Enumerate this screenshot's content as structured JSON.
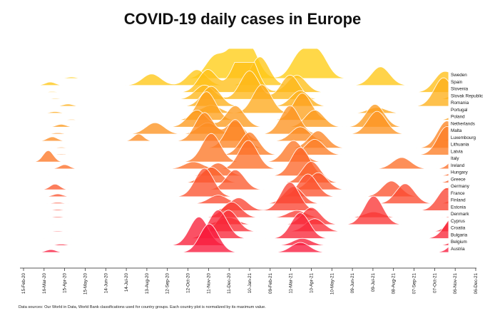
{
  "chart_data": {
    "type": "area",
    "title": "COVID-19 daily cases in Europe",
    "xlabel": "",
    "ylabel": "",
    "x_ticks": [
      "15-Feb-20",
      "16-Mar-20",
      "15-Apr-20",
      "15-May-20",
      "14-Jun-20",
      "14-Jul-20",
      "13-Aug-20",
      "12-Sep-20",
      "12-Oct-20",
      "11-Nov-20",
      "11-Dec-20",
      "10-Jan-21",
      "09-Feb-21",
      "11-Mar-21",
      "10-Apr-21",
      "10-May-21",
      "09-Jun-21",
      "09-Jul-21",
      "08-Aug-21",
      "07-Sep-21",
      "07-Oct-21",
      "06-Nov-21",
      "06-Dec-21"
    ],
    "x_range": [
      "2020-02-15",
      "2021-12-06"
    ],
    "normalization": "each series scaled to its own maximum (0-1)",
    "series": [
      {
        "name": "Sweden",
        "peaks": [
          [
            "2020-04-25",
            0.05
          ],
          [
            "2020-11-20",
            0.75
          ],
          [
            "2020-12-20",
            0.95
          ],
          [
            "2021-01-10",
            1.0
          ],
          [
            "2021-03-25",
            0.85
          ],
          [
            "2021-04-20",
            0.9
          ]
        ]
      },
      {
        "name": "Spain",
        "peaks": [
          [
            "2020-03-25",
            0.12
          ],
          [
            "2020-08-20",
            0.4
          ],
          [
            "2020-10-25",
            0.55
          ],
          [
            "2021-01-25",
            1.0
          ],
          [
            "2021-07-20",
            0.65
          ]
        ]
      },
      {
        "name": "Slovenia",
        "peaks": [
          [
            "2020-03-28",
            0.03
          ],
          [
            "2020-11-10",
            0.8
          ],
          [
            "2020-12-25",
            0.85
          ],
          [
            "2021-01-10",
            1.0
          ],
          [
            "2021-03-20",
            0.6
          ],
          [
            "2021-10-20",
            0.7
          ],
          [
            "2021-11-25",
            1.0
          ]
        ]
      },
      {
        "name": "Slovak Republic",
        "peaks": [
          [
            "2020-04-01",
            0.03
          ],
          [
            "2020-11-05",
            0.5
          ],
          [
            "2021-01-10",
            1.0
          ],
          [
            "2021-03-10",
            0.85
          ],
          [
            "2021-11-25",
            1.0
          ]
        ]
      },
      {
        "name": "Romania",
        "peaks": [
          [
            "2020-04-20",
            0.08
          ],
          [
            "2020-11-15",
            0.7
          ],
          [
            "2021-03-25",
            0.55
          ],
          [
            "2021-10-20",
            1.0
          ]
        ]
      },
      {
        "name": "Portugal",
        "peaks": [
          [
            "2020-04-01",
            0.06
          ],
          [
            "2020-11-15",
            0.28
          ],
          [
            "2021-01-28",
            1.0
          ],
          [
            "2021-07-15",
            0.2
          ],
          [
            "2021-11-30",
            0.2
          ]
        ]
      },
      {
        "name": "Poland",
        "peaks": [
          [
            "2020-04-25",
            0.03
          ],
          [
            "2020-11-08",
            1.0
          ],
          [
            "2021-03-28",
            0.95
          ],
          [
            "2021-11-25",
            0.9
          ]
        ]
      },
      {
        "name": "Netherlands",
        "peaks": [
          [
            "2020-04-10",
            0.1
          ],
          [
            "2020-10-25",
            0.6
          ],
          [
            "2020-12-20",
            0.75
          ],
          [
            "2021-04-15",
            0.6
          ],
          [
            "2021-07-12",
            0.8
          ],
          [
            "2021-11-25",
            1.0
          ]
        ]
      },
      {
        "name": "Malta",
        "peaks": [
          [
            "2020-04-05",
            0.05
          ],
          [
            "2020-08-25",
            0.4
          ],
          [
            "2020-11-10",
            0.4
          ],
          [
            "2021-03-10",
            1.0
          ],
          [
            "2021-07-15",
            0.8
          ]
        ]
      },
      {
        "name": "Luxembourg",
        "peaks": [
          [
            "2020-03-28",
            0.15
          ],
          [
            "2020-08-01",
            0.25
          ],
          [
            "2020-11-05",
            1.0
          ],
          [
            "2020-12-20",
            0.7
          ],
          [
            "2021-03-25",
            0.5
          ],
          [
            "2021-11-25",
            0.9
          ]
        ]
      },
      {
        "name": "Lithuania",
        "peaks": [
          [
            "2020-04-10",
            0.03
          ],
          [
            "2020-12-20",
            1.0
          ],
          [
            "2021-04-20",
            0.6
          ],
          [
            "2021-10-25",
            0.95
          ]
        ]
      },
      {
        "name": "Latvia",
        "peaks": [
          [
            "2020-04-10",
            0.03
          ],
          [
            "2021-01-10",
            0.8
          ],
          [
            "2021-04-15",
            0.55
          ],
          [
            "2021-10-25",
            1.0
          ]
        ]
      },
      {
        "name": "Italy",
        "peaks": [
          [
            "2020-03-22",
            0.4
          ],
          [
            "2020-11-15",
            1.0
          ],
          [
            "2021-03-15",
            0.75
          ],
          [
            "2021-11-30",
            0.35
          ]
        ]
      },
      {
        "name": "Ireland",
        "peaks": [
          [
            "2020-04-15",
            0.15
          ],
          [
            "2020-10-20",
            0.25
          ],
          [
            "2021-01-08",
            1.0
          ],
          [
            "2021-08-20",
            0.4
          ],
          [
            "2021-11-20",
            0.95
          ]
        ]
      },
      {
        "name": "Hungary",
        "peaks": [
          [
            "2020-04-05",
            0.02
          ],
          [
            "2020-11-25",
            0.45
          ],
          [
            "2021-03-25",
            1.0
          ],
          [
            "2021-11-25",
            0.75
          ]
        ]
      },
      {
        "name": "Greece",
        "peaks": [
          [
            "2020-04-05",
            0.02
          ],
          [
            "2020-11-15",
            0.55
          ],
          [
            "2021-04-10",
            0.75
          ],
          [
            "2021-11-25",
            1.0
          ]
        ]
      },
      {
        "name": "Germany",
        "peaks": [
          [
            "2020-04-01",
            0.2
          ],
          [
            "2020-12-20",
            0.7
          ],
          [
            "2021-04-20",
            0.6
          ],
          [
            "2021-11-25",
            1.0
          ]
        ]
      },
      {
        "name": "France",
        "peaks": [
          [
            "2020-04-05",
            0.1
          ],
          [
            "2020-11-05",
            1.0
          ],
          [
            "2021-04-05",
            0.8
          ],
          [
            "2021-08-05",
            0.55
          ],
          [
            "2021-11-30",
            0.7
          ]
        ]
      },
      {
        "name": "Finland",
        "peaks": [
          [
            "2020-04-05",
            0.05
          ],
          [
            "2020-11-25",
            0.3
          ],
          [
            "2021-03-15",
            0.6
          ],
          [
            "2021-08-25",
            0.7
          ],
          [
            "2021-11-25",
            1.0
          ]
        ]
      },
      {
        "name": "Estonia",
        "peaks": [
          [
            "2020-04-05",
            0.04
          ],
          [
            "2020-12-25",
            0.45
          ],
          [
            "2021-03-10",
            1.0
          ],
          [
            "2021-10-25",
            0.8
          ]
        ]
      },
      {
        "name": "Denmark",
        "peaks": [
          [
            "2020-04-05",
            0.04
          ],
          [
            "2020-12-15",
            0.55
          ],
          [
            "2021-03-20",
            0.25
          ],
          [
            "2021-07-10",
            0.2
          ],
          [
            "2021-11-30",
            1.0
          ]
        ]
      },
      {
        "name": "Cyprus",
        "peaks": [
          [
            "2020-04-05",
            0.02
          ],
          [
            "2020-12-10",
            0.25
          ],
          [
            "2021-04-10",
            0.6
          ],
          [
            "2021-07-10",
            1.0
          ]
        ]
      },
      {
        "name": "Croatia",
        "peaks": [
          [
            "2020-04-05",
            0.03
          ],
          [
            "2020-12-10",
            0.75
          ],
          [
            "2021-04-15",
            0.45
          ],
          [
            "2021-11-15",
            1.0
          ]
        ]
      },
      {
        "name": "Bulgaria",
        "peaks": [
          [
            "2020-04-05",
            0.02
          ],
          [
            "2020-11-25",
            1.0
          ],
          [
            "2021-03-25",
            0.9
          ],
          [
            "2021-11-05",
            0.8
          ]
        ]
      },
      {
        "name": "Belgium",
        "peaks": [
          [
            "2020-04-10",
            0.05
          ],
          [
            "2020-10-28",
            1.0
          ],
          [
            "2021-03-28",
            0.25
          ],
          [
            "2021-11-25",
            0.85
          ]
        ]
      },
      {
        "name": "Austria",
        "peaks": [
          [
            "2020-03-26",
            0.1
          ],
          [
            "2020-11-12",
            1.0
          ],
          [
            "2021-03-25",
            0.35
          ],
          [
            "2021-11-20",
            0.95
          ]
        ]
      }
    ]
  },
  "footer": {
    "source_text": "Data sources: Our World in Data, World Bank classifications used for country groups. Each country plot is normalized by its maximum value."
  }
}
